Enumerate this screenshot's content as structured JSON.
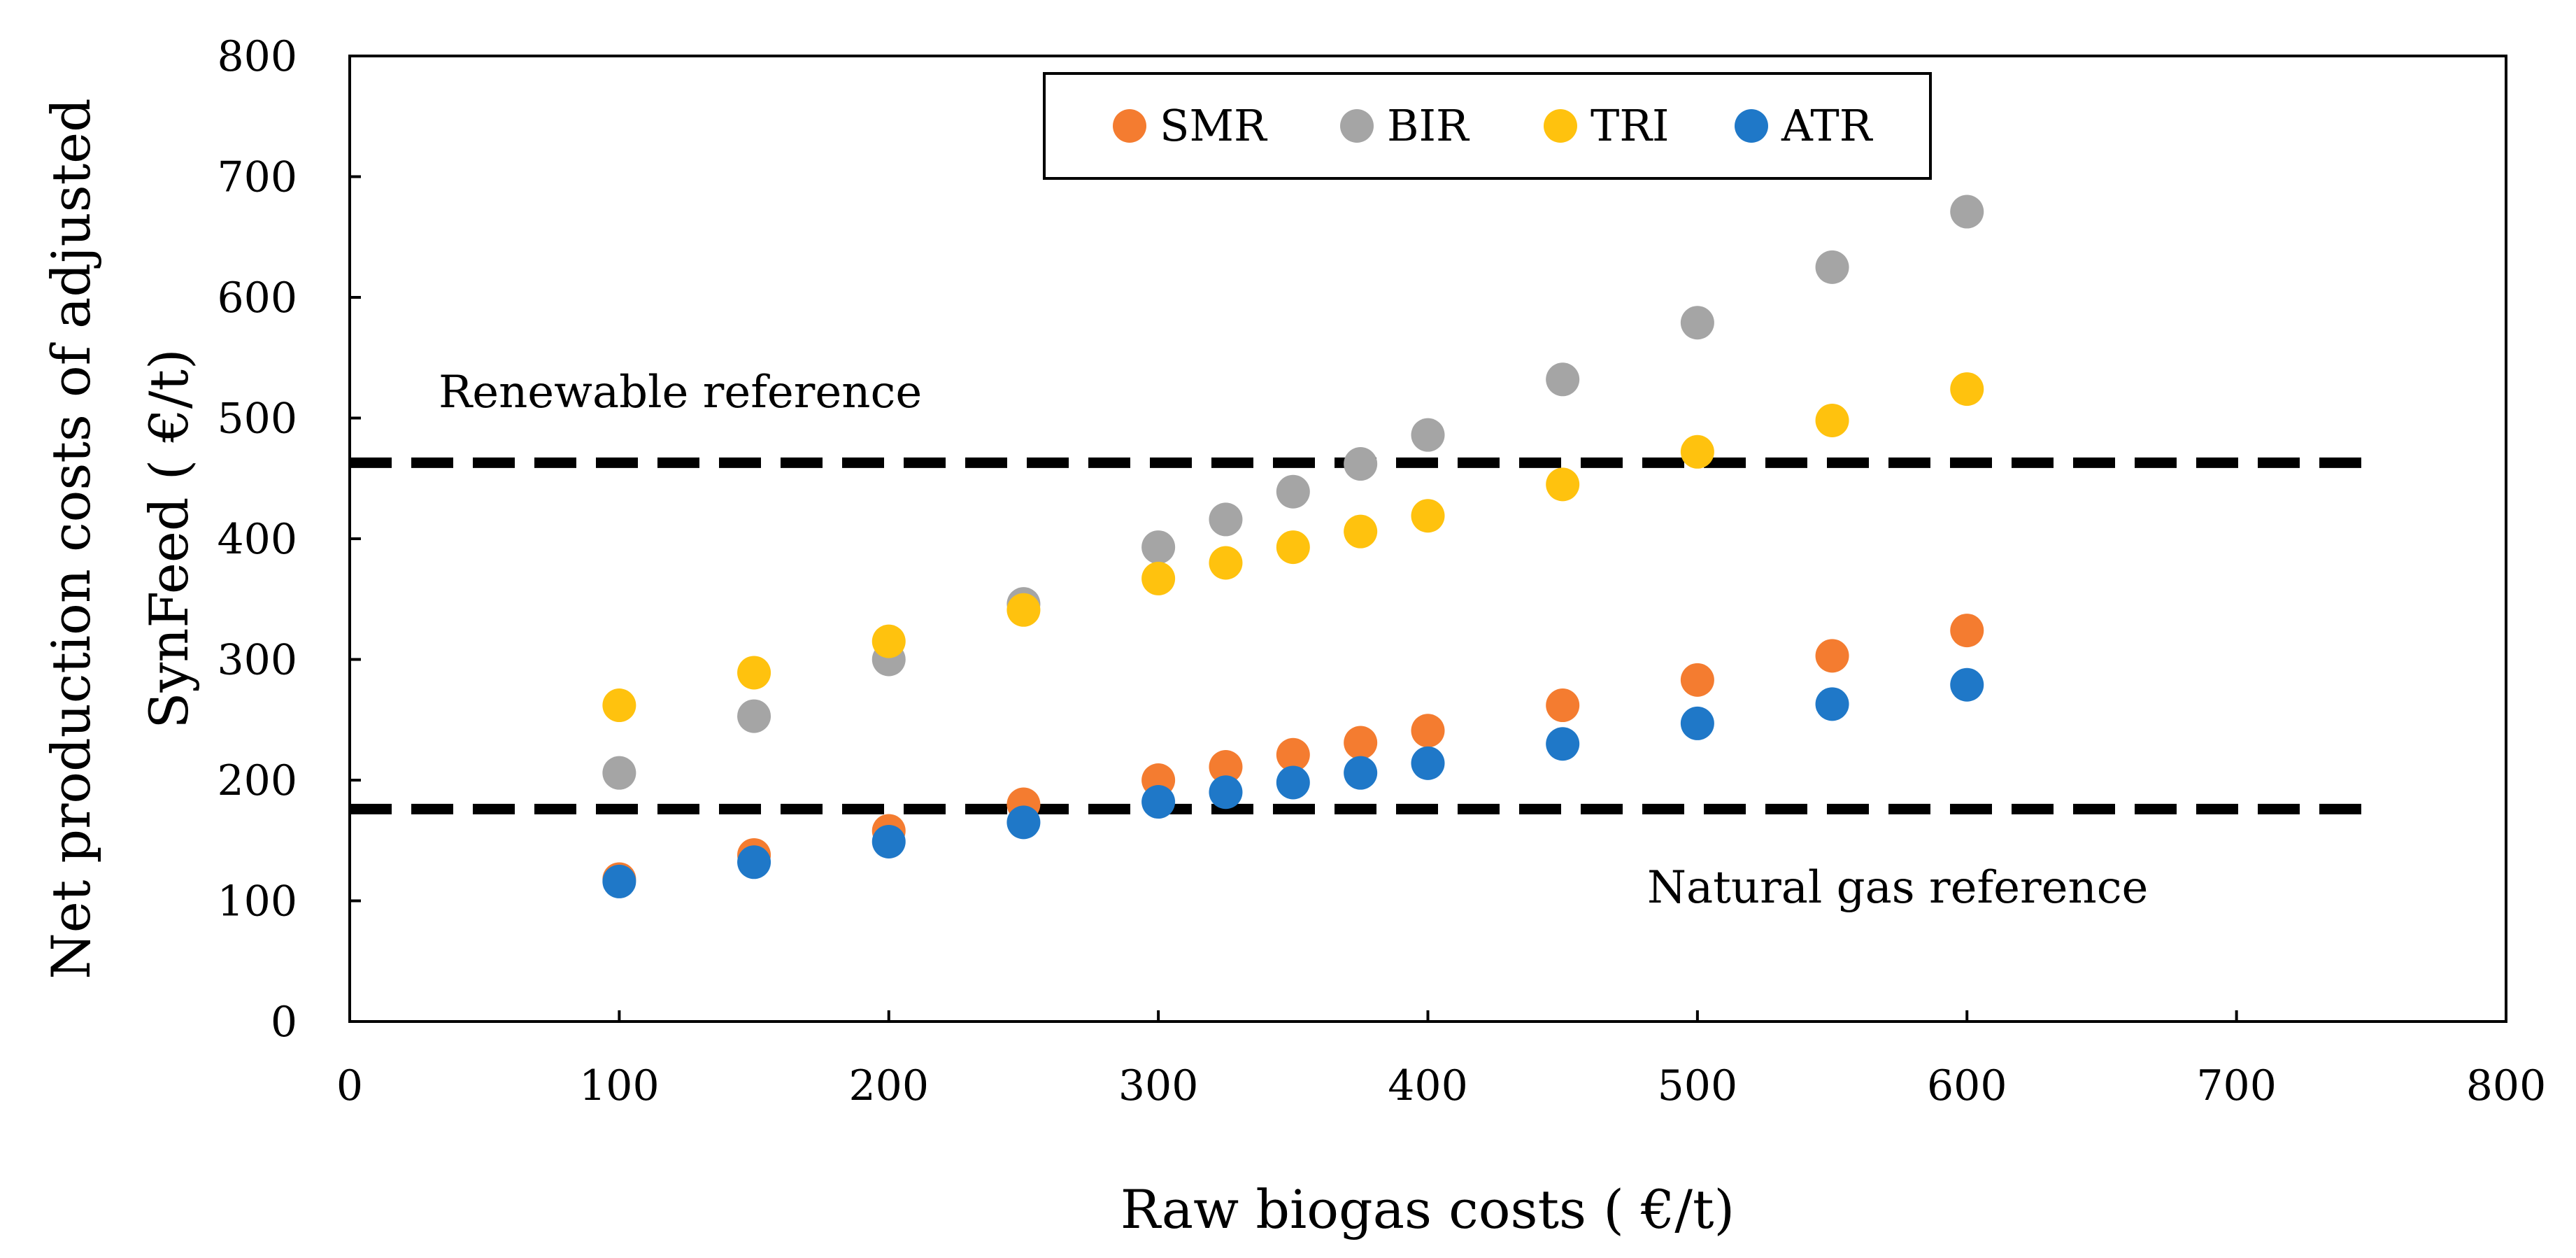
{
  "chart_data": {
    "type": "scatter",
    "title": "",
    "xlabel": "Raw biogas costs ( €/t)",
    "ylabel_lines": [
      "Net production costs of adjusted",
      "SynFeed ( €/t)"
    ],
    "xlim": [
      0,
      800
    ],
    "ylim": [
      0,
      800
    ],
    "x_ticks": [
      0,
      100,
      200,
      300,
      400,
      500,
      600,
      700,
      800
    ],
    "y_ticks": [
      0,
      100,
      200,
      300,
      400,
      500,
      600,
      700,
      800
    ],
    "x_tick_labels": [
      "0",
      "100",
      "200",
      "300",
      "400",
      "500",
      "600",
      "700",
      "800"
    ],
    "y_tick_labels": [
      "0",
      "100",
      "200",
      "300",
      "400",
      "500",
      "600",
      "700",
      "800"
    ],
    "grid": false,
    "legend_position": "top-center",
    "x": [
      100,
      150,
      200,
      250,
      300,
      325,
      350,
      375,
      400,
      450,
      500,
      550,
      600
    ],
    "series": [
      {
        "name": "SMR",
        "color": "#f47c30",
        "values": [
          118,
          138,
          158,
          180,
          200,
          211,
          221,
          231,
          241,
          262,
          283,
          303,
          324
        ]
      },
      {
        "name": "BIR",
        "color": "#a5a5a5",
        "values": [
          206,
          253,
          300,
          346,
          393,
          416,
          439,
          462,
          486,
          532,
          579,
          625,
          671
        ]
      },
      {
        "name": "TRI",
        "color": "#ffc20e",
        "values": [
          262,
          289,
          315,
          341,
          367,
          380,
          393,
          406,
          419,
          445,
          472,
          498,
          524
        ]
      },
      {
        "name": "ATR",
        "color": "#1f78c8",
        "values": [
          116,
          132,
          149,
          165,
          182,
          190,
          198,
          206,
          214,
          230,
          247,
          263,
          279
        ]
      }
    ],
    "reference_lines": [
      {
        "name": "renewable-reference",
        "label": "Renewable reference",
        "value": 463,
        "x_range": [
          0,
          750
        ],
        "style": "dashed",
        "color": "#000000"
      },
      {
        "name": "natural-gas-reference",
        "label": "Natural gas reference",
        "value": 176,
        "x_range": [
          0,
          750
        ],
        "style": "dashed",
        "color": "#000000"
      }
    ]
  }
}
